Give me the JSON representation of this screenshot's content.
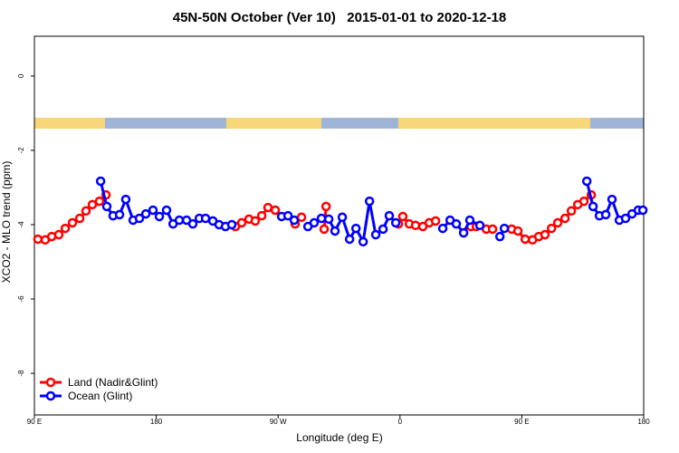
{
  "chart_data": {
    "type": "line",
    "title": "45N-50N October (Ver 10)   2015-01-01 to 2020-12-18",
    "xlabel": "Longitude (deg E)",
    "ylabel": "XCO2 - MLO trend (ppm)",
    "xlim": [
      90,
      540
    ],
    "xticks": [
      {
        "value": 90,
        "label": "90 E"
      },
      {
        "value": 180,
        "label": "180"
      },
      {
        "value": 270,
        "label": "90 W"
      },
      {
        "value": 360,
        "label": "0"
      },
      {
        "value": 450,
        "label": "90 E"
      },
      {
        "value": 540,
        "label": "180"
      }
    ],
    "ylim": [
      -9.12,
      1.07
    ],
    "yticks": [
      0,
      -2,
      -4,
      -6,
      -8
    ],
    "legend": "lower left",
    "series": [
      {
        "name": "Land (Nadir&Glint)",
        "color": "#ff0000",
        "x": [
          92.6,
          98.0,
          102.8,
          108.0,
          112.8,
          118.1,
          123.5,
          128.1,
          132.8,
          138.1,
          142.9,
          190,
          238.5,
          243.1,
          248.5,
          253.1,
          257.9,
          262.5,
          267.9,
          275,
          282.6,
          287.3,
          295,
          304.0,
          305.4,
          332.5,
          358.9,
          362.1,
          366.9,
          371.5,
          376.9,
          381.6,
          386.3,
          398.8,
          412.4,
          416.4,
          423.8,
          428.4,
          435,
          442.5,
          447.1,
          452.5,
          457.9,
          462.5,
          467.1,
          471.9,
          476.5,
          481.9,
          486.6,
          491.3,
          495.9,
          501.3
        ],
        "values": [
          -4.39,
          -4.41,
          -4.32,
          -4.27,
          -4.1,
          -3.95,
          -3.83,
          -3.63,
          -3.46,
          -3.37,
          -3.2,
          null,
          -4.05,
          -3.95,
          -3.85,
          -3.9,
          -3.76,
          -3.54,
          -3.61,
          null,
          -3.98,
          -3.8,
          null,
          -4.12,
          -3.51,
          null,
          -3.98,
          -3.78,
          -3.98,
          -4.02,
          -4.05,
          -3.95,
          -3.9,
          null,
          -4.05,
          -4.05,
          -4.12,
          -4.12,
          null,
          -4.12,
          -4.17,
          -4.39,
          -4.41,
          -4.32,
          -4.27,
          -4.1,
          -3.95,
          -3.83,
          -3.63,
          -3.46,
          -3.37,
          -3.2
        ]
      },
      {
        "name": "Ocean (Glint)",
        "color": "#0000ff",
        "x": [
          138.9,
          143.5,
          148.1,
          152.9,
          157.5,
          162.9,
          167.6,
          172.3,
          177.6,
          182.3,
          187.6,
          192.4,
          197.0,
          202.4,
          207.0,
          211.8,
          216.4,
          221.8,
          226.4,
          231.1,
          235.8,
          252.5,
          272.6,
          277.3,
          281.9,
          287,
          292.0,
          296.6,
          302.0,
          307.4,
          312.0,
          317.4,
          322.8,
          327.5,
          332.8,
          337.5,
          342.1,
          347.5,
          352.1,
          356.9,
          374,
          391.6,
          397.0,
          401.6,
          407.0,
          411.6,
          419.0,
          427,
          433.8,
          437.1,
          465,
          498.0,
          502.6,
          507.3,
          512.0,
          516.6,
          522.0,
          526.6,
          531.4,
          536.0,
          539.4
        ],
        "values": [
          -2.83,
          -3.51,
          -3.76,
          -3.73,
          -3.32,
          -3.88,
          -3.83,
          -3.71,
          -3.61,
          -3.78,
          -3.61,
          -3.98,
          -3.88,
          -3.88,
          -3.98,
          -3.83,
          -3.83,
          -3.9,
          -4.0,
          -4.05,
          -4.0,
          null,
          -3.78,
          -3.76,
          -3.88,
          null,
          -4.05,
          -3.95,
          -3.83,
          -3.85,
          -4.17,
          -3.8,
          -4.39,
          -4.1,
          -4.46,
          -3.37,
          -4.27,
          -4.12,
          -3.76,
          -3.95,
          null,
          -4.1,
          -3.88,
          -3.98,
          -4.22,
          -3.88,
          -4.02,
          null,
          -4.32,
          -4.1,
          null,
          -2.83,
          -3.51,
          -3.76,
          -3.73,
          -3.32,
          -3.88,
          -3.83,
          -3.71,
          -3.61,
          -3.61
        ]
      }
    ]
  }
}
